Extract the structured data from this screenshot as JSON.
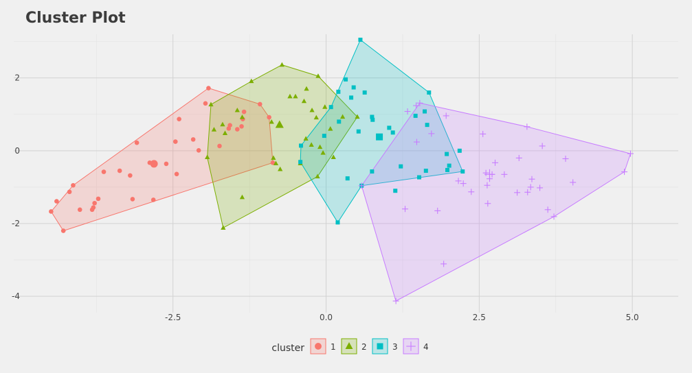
{
  "chart_data": {
    "type": "scatter",
    "title": "Cluster Plot",
    "xlabel": "",
    "ylabel": "",
    "xlim": [
      -5.1,
      5.75
    ],
    "ylim": [
      -4.45,
      3.2
    ],
    "x_ticks": [
      -2.5,
      0.0,
      2.5,
      5.0
    ],
    "x_tick_labels": [
      "-2.5",
      "0.0",
      "2.5",
      "5.0"
    ],
    "y_ticks": [
      -4,
      -2,
      0,
      2
    ],
    "y_tick_labels": [
      "-4",
      "-2",
      "0",
      "2"
    ],
    "grid": true,
    "legend": {
      "position": "bottom",
      "title": "cluster",
      "entries": [
        "1",
        "2",
        "3",
        "4"
      ]
    },
    "series": [
      {
        "name": "1",
        "color": "#F8766D",
        "marker": "circle",
        "centroid": [
          -2.81,
          -0.36
        ],
        "hull": [
          [
            -1.92,
            1.72
          ],
          [
            -1.08,
            1.28
          ],
          [
            -0.93,
            0.92
          ],
          [
            -0.87,
            -0.33
          ],
          [
            -4.29,
            -2.2
          ],
          [
            -4.49,
            -1.67
          ],
          [
            -4.13,
            -0.95
          ]
        ],
        "points": [
          [
            -1.92,
            1.72
          ],
          [
            -1.08,
            1.28
          ],
          [
            -0.93,
            0.92
          ],
          [
            -0.87,
            -0.33
          ],
          [
            -4.29,
            -2.2
          ],
          [
            -4.49,
            -1.67
          ],
          [
            -4.13,
            -0.95
          ],
          [
            -4.19,
            -1.13
          ],
          [
            -4.4,
            -1.39
          ],
          [
            -4.02,
            -1.62
          ],
          [
            -3.82,
            -1.62
          ],
          [
            -3.72,
            -1.32
          ],
          [
            -3.8,
            -1.56
          ],
          [
            -3.78,
            -1.44
          ],
          [
            -3.63,
            -0.58
          ],
          [
            -3.37,
            -0.55
          ],
          [
            -3.2,
            -0.68
          ],
          [
            -3.16,
            -1.33
          ],
          [
            -3.09,
            0.22
          ],
          [
            -2.82,
            -1.35
          ],
          [
            -2.88,
            -0.33
          ],
          [
            -2.61,
            -0.36
          ],
          [
            -2.44,
            -0.64
          ],
          [
            -2.46,
            0.25
          ],
          [
            -2.4,
            0.87
          ],
          [
            -2.17,
            0.31
          ],
          [
            -2.08,
            0.01
          ],
          [
            -1.97,
            1.3
          ],
          [
            -1.74,
            0.13
          ],
          [
            -1.57,
            0.7
          ],
          [
            -1.59,
            0.61
          ],
          [
            -1.45,
            0.59
          ],
          [
            -1.38,
            0.67
          ],
          [
            -1.36,
            0.87
          ],
          [
            -1.34,
            1.07
          ]
        ]
      },
      {
        "name": "2",
        "color": "#7CAE00",
        "marker": "triangle",
        "centroid": [
          -0.76,
          0.71
        ],
        "hull": [
          [
            -0.72,
            2.36
          ],
          [
            -0.13,
            2.05
          ],
          [
            0.51,
            0.93
          ],
          [
            -0.14,
            -0.71
          ],
          [
            -1.68,
            -2.12
          ],
          [
            -1.94,
            -0.18
          ],
          [
            -1.88,
            1.27
          ],
          [
            -1.22,
            1.91
          ]
        ],
        "points": [
          [
            -0.72,
            2.36
          ],
          [
            -0.13,
            2.05
          ],
          [
            0.51,
            0.93
          ],
          [
            -0.14,
            -0.71
          ],
          [
            -1.68,
            -2.12
          ],
          [
            -1.94,
            -0.18
          ],
          [
            -1.88,
            1.27
          ],
          [
            -1.22,
            1.91
          ],
          [
            -1.83,
            0.58
          ],
          [
            -1.69,
            0.72
          ],
          [
            -1.65,
            0.48
          ],
          [
            -1.45,
            1.11
          ],
          [
            -1.37,
            0.92
          ],
          [
            -1.37,
            -1.28
          ],
          [
            -0.89,
            0.79
          ],
          [
            -0.86,
            -0.2
          ],
          [
            -0.82,
            -0.35
          ],
          [
            -0.75,
            -0.51
          ],
          [
            -0.59,
            1.49
          ],
          [
            -0.5,
            1.49
          ],
          [
            -0.42,
            -0.35
          ],
          [
            -0.36,
            1.36
          ],
          [
            -0.33,
            0.33
          ],
          [
            -0.32,
            1.7
          ],
          [
            -0.24,
            0.16
          ],
          [
            -0.23,
            1.11
          ],
          [
            -0.16,
            0.91
          ],
          [
            -0.1,
            0.1
          ],
          [
            -0.05,
            -0.06
          ],
          [
            -0.02,
            1.2
          ],
          [
            0.07,
            0.6
          ],
          [
            0.12,
            -0.18
          ],
          [
            0.27,
            0.93
          ]
        ]
      },
      {
        "name": "3",
        "color": "#00BFC4",
        "marker": "square",
        "centroid": [
          0.87,
          0.38
        ],
        "hull": [
          [
            0.56,
            3.05
          ],
          [
            1.68,
            1.6
          ],
          [
            2.23,
            -0.57
          ],
          [
            0.58,
            -0.96
          ],
          [
            0.19,
            -1.97
          ],
          [
            -0.42,
            -0.31
          ],
          [
            -0.41,
            0.14
          ],
          [
            0.08,
            1.2
          ]
        ],
        "points": [
          [
            0.56,
            3.05
          ],
          [
            1.68,
            1.6
          ],
          [
            2.23,
            -0.57
          ],
          [
            0.58,
            -0.96
          ],
          [
            0.19,
            -1.97
          ],
          [
            -0.42,
            -0.31
          ],
          [
            -0.41,
            0.14
          ],
          [
            0.08,
            1.2
          ],
          [
            -0.03,
            0.41
          ],
          [
            0.2,
            1.62
          ],
          [
            0.21,
            0.8
          ],
          [
            0.32,
            1.96
          ],
          [
            0.35,
            -0.76
          ],
          [
            0.41,
            1.46
          ],
          [
            0.45,
            1.74
          ],
          [
            0.53,
            0.53
          ],
          [
            0.63,
            1.6
          ],
          [
            0.75,
            0.93
          ],
          [
            0.76,
            0.85
          ],
          [
            0.75,
            -0.57
          ],
          [
            1.03,
            0.63
          ],
          [
            1.09,
            0.5
          ],
          [
            1.13,
            -1.1
          ],
          [
            1.22,
            -0.43
          ],
          [
            1.46,
            0.96
          ],
          [
            1.52,
            -0.73
          ],
          [
            1.61,
            1.08
          ],
          [
            1.65,
            0.71
          ],
          [
            1.63,
            -0.55
          ],
          [
            1.97,
            -0.09
          ],
          [
            2.01,
            -0.41
          ],
          [
            1.98,
            -0.53
          ],
          [
            2.18,
            0.0
          ]
        ]
      },
      {
        "name": "4",
        "color": "#C77CFF",
        "marker": "plus",
        "centroid": [
          2.67,
          -0.65
        ],
        "hull": [
          [
            1.53,
            1.31
          ],
          [
            3.28,
            0.66
          ],
          [
            4.97,
            -0.08
          ],
          [
            4.87,
            -0.58
          ],
          [
            3.72,
            -1.81
          ],
          [
            1.14,
            -4.13
          ],
          [
            0.58,
            -0.96
          ]
        ],
        "points": [
          [
            1.53,
            1.31
          ],
          [
            3.28,
            0.66
          ],
          [
            4.97,
            -0.08
          ],
          [
            4.87,
            -0.58
          ],
          [
            3.72,
            -1.81
          ],
          [
            1.14,
            -4.13
          ],
          [
            0.58,
            -0.96
          ],
          [
            1.33,
            1.08
          ],
          [
            1.47,
            1.24
          ],
          [
            1.48,
            0.24
          ],
          [
            1.29,
            -1.6
          ],
          [
            1.82,
            -1.65
          ],
          [
            1.92,
            -3.11
          ],
          [
            1.96,
            0.96
          ],
          [
            1.72,
            0.47
          ],
          [
            2.16,
            -0.83
          ],
          [
            2.24,
            -0.9
          ],
          [
            2.37,
            -1.13
          ],
          [
            2.56,
            0.46
          ],
          [
            2.61,
            -0.61
          ],
          [
            2.63,
            -0.95
          ],
          [
            2.64,
            -1.45
          ],
          [
            2.67,
            -0.77
          ],
          [
            2.71,
            -0.65
          ],
          [
            2.76,
            -0.33
          ],
          [
            2.91,
            -0.65
          ],
          [
            3.12,
            -1.15
          ],
          [
            3.15,
            -0.2
          ],
          [
            3.29,
            -1.14
          ],
          [
            3.34,
            -1.0
          ],
          [
            3.36,
            -0.78
          ],
          [
            3.49,
            -1.02
          ],
          [
            3.53,
            0.13
          ],
          [
            3.62,
            -1.62
          ],
          [
            3.91,
            -0.22
          ],
          [
            4.03,
            -0.87
          ]
        ]
      }
    ]
  }
}
